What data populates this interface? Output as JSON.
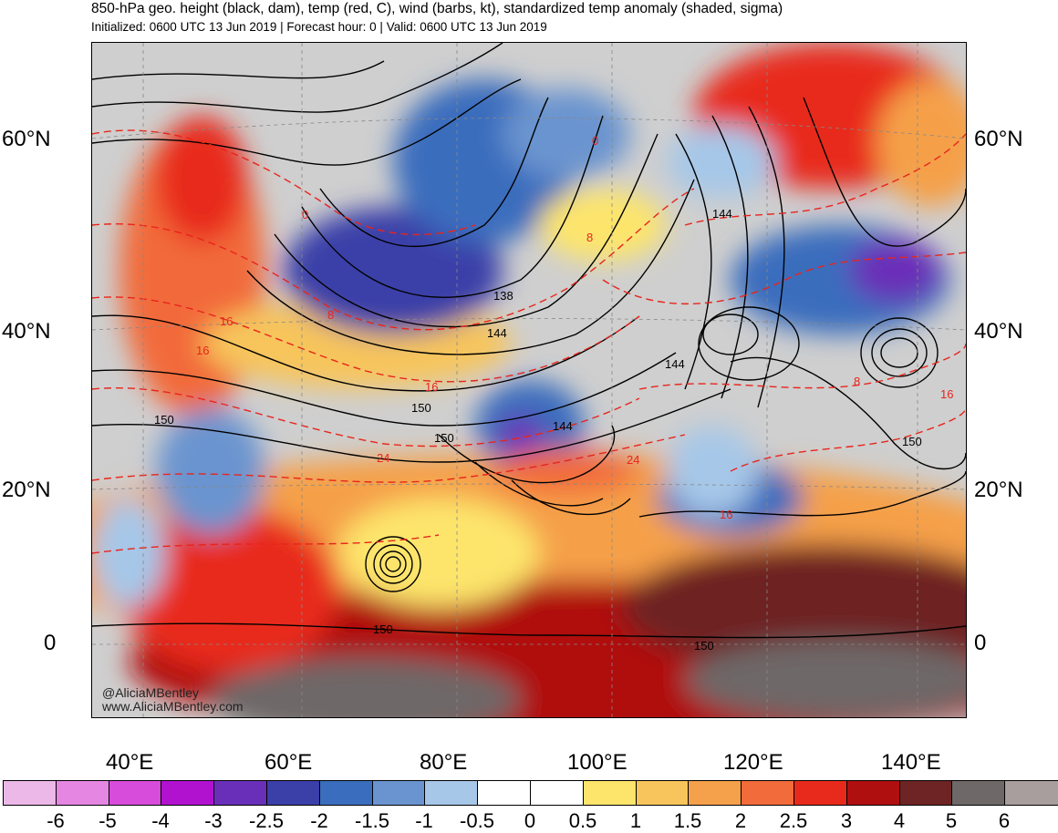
{
  "header": {
    "title": "850-hPa geo. height (black, dam), temp (red, C), wind (barbs, kt), standardized temp anomaly (shaded, sigma)",
    "subtitle": "Initialized: 0600 UTC 13 Jun 2019 | Forecast hour: 0 | Valid: 0600 UTC 13 Jun 2019"
  },
  "map": {
    "lat_labels_left": [
      "60°N",
      "40°N",
      "20°N",
      "0"
    ],
    "lat_labels_right": [
      "60°N",
      "40°N",
      "20°N",
      "0"
    ],
    "lon_labels": [
      "40°E",
      "60°E",
      "80°E",
      "100°E",
      "120°E",
      "140°E"
    ],
    "height_labels": [
      "138",
      "144",
      "144",
      "144",
      "144",
      "150",
      "150",
      "150",
      "150",
      "150",
      "150"
    ],
    "temp_labels": [
      "0",
      "0",
      "8",
      "8",
      "16",
      "16",
      "16",
      "24",
      "24",
      "16",
      "8",
      "16"
    ],
    "credit_lines": [
      "@AliciaMBentley",
      "www.AliciaMBentley.com"
    ]
  },
  "colorbar": {
    "colors": [
      "#ecb8e8",
      "#e486e2",
      "#d74cdb",
      "#b112cf",
      "#6a2fb8",
      "#3b3fa8",
      "#3a6dbd",
      "#6a94cf",
      "#a6c7e8",
      "#ffffff",
      "#ffffff",
      "#fde56c",
      "#f7c55b",
      "#f5a04a",
      "#f26b3a",
      "#e82a1c",
      "#b00f0f",
      "#6e2424",
      "#6e6868",
      "#a89e9e"
    ],
    "labels": [
      "-6",
      "-5",
      "-4",
      "-3",
      "-2.5",
      "-2",
      "-1.5",
      "-1",
      "-0.5",
      "0",
      "0.5",
      "1",
      "1.5",
      "2",
      "2.5",
      "3",
      "4",
      "5",
      "6"
    ]
  }
}
